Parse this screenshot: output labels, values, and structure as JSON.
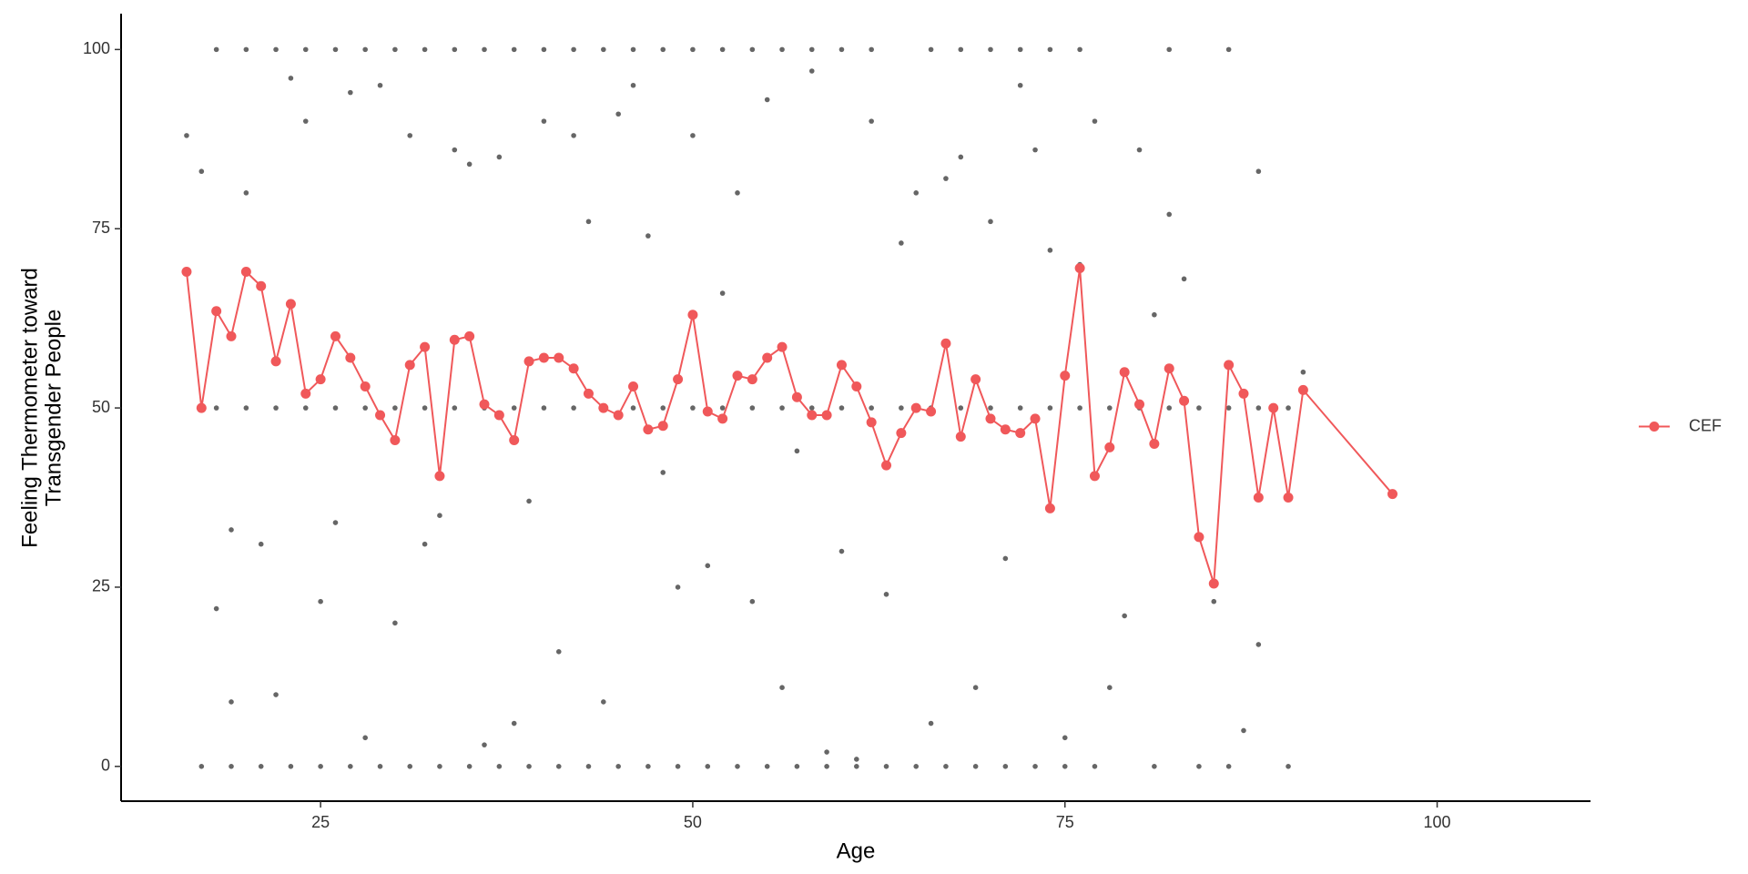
{
  "chart_data": {
    "type": "scatter",
    "xlabel": "Age",
    "ylabel": [
      "Feeling Thermometer toward",
      "Transgender People"
    ],
    "xlim": [
      11.6,
      110.3
    ],
    "ylim": [
      -4.85,
      105
    ],
    "xticks": [
      25,
      50,
      75,
      100
    ],
    "yticks": [
      0,
      25,
      50,
      75,
      100
    ],
    "grid": false,
    "legend": "right",
    "series": [
      {
        "color": "#000000",
        "mode": "markers",
        "x": [
          18,
          20,
          22,
          24,
          26,
          28,
          30,
          32,
          34,
          36,
          38,
          40,
          42,
          44,
          46,
          48,
          50,
          52,
          54,
          56,
          58,
          60,
          62,
          66,
          68,
          70,
          72,
          74,
          76,
          82,
          86,
          18,
          20,
          22,
          24,
          26,
          28,
          30,
          32,
          34,
          36,
          38,
          40,
          42,
          44,
          46,
          48,
          50,
          52,
          54,
          56,
          58,
          60,
          62,
          64,
          66,
          68,
          70,
          72,
          74,
          76,
          78,
          80,
          82,
          84,
          86,
          88,
          90,
          17,
          19,
          21,
          23,
          25,
          27,
          29,
          31,
          33,
          35,
          37,
          39,
          41,
          43,
          45,
          47,
          49,
          51,
          53,
          55,
          57,
          59,
          61,
          63,
          65,
          67,
          69,
          71,
          73,
          75,
          77,
          81,
          84,
          86,
          90,
          16,
          17,
          18,
          19,
          19,
          20,
          21,
          22,
          23,
          24,
          25,
          26,
          27,
          28,
          29,
          30,
          31,
          32,
          33,
          34,
          35,
          36,
          37,
          38,
          39,
          40,
          41,
          42,
          43,
          44,
          45,
          46,
          47,
          48,
          49,
          50,
          51,
          52,
          53,
          54,
          55,
          56,
          57,
          58,
          59,
          60,
          61,
          62,
          63,
          64,
          65,
          66,
          67,
          68,
          69,
          70,
          71,
          72,
          73,
          74,
          75,
          76,
          77,
          78,
          79,
          80,
          81,
          82,
          83,
          85,
          87,
          88,
          88,
          91
        ],
        "values": [
          100,
          100,
          100,
          100,
          100,
          100,
          100,
          100,
          100,
          100,
          100,
          100,
          100,
          100,
          100,
          100,
          100,
          100,
          100,
          100,
          100,
          100,
          100,
          100,
          100,
          100,
          100,
          100,
          100,
          100,
          100,
          50,
          50,
          50,
          50,
          50,
          50,
          50,
          50,
          50,
          50,
          50,
          50,
          50,
          50,
          50,
          50,
          50,
          50,
          50,
          50,
          50,
          50,
          50,
          50,
          50,
          50,
          50,
          50,
          50,
          50,
          50,
          50,
          50,
          50,
          50,
          50,
          50,
          0,
          0,
          0,
          0,
          0,
          0,
          0,
          0,
          0,
          0,
          0,
          0,
          0,
          0,
          0,
          0,
          0,
          0,
          0,
          0,
          0,
          0,
          0,
          0,
          0,
          0,
          0,
          0,
          0,
          0,
          0,
          0,
          0,
          0,
          0,
          88,
          83,
          22,
          9,
          33,
          80,
          31,
          10,
          96,
          90,
          23,
          34,
          94,
          4,
          95,
          20,
          88,
          31,
          35,
          86,
          84,
          3,
          85,
          6,
          37,
          90,
          16,
          88,
          76,
          9,
          91,
          95,
          74,
          41,
          25,
          88,
          28,
          66,
          80,
          23,
          93,
          11,
          44,
          97,
          2,
          30,
          1,
          90,
          24,
          73,
          80,
          6,
          82,
          85,
          11,
          76,
          29,
          95,
          86,
          72,
          4,
          70,
          90,
          11,
          21,
          86,
          63,
          77,
          68,
          23,
          5,
          17,
          83,
          55
        ]
      },
      {
        "name": "CEF",
        "color": "#f0585a",
        "mode": "lines+markers",
        "x": [
          16,
          17,
          18,
          19,
          20,
          21,
          22,
          23,
          24,
          25,
          26,
          27,
          28,
          29,
          30,
          31,
          32,
          33,
          34,
          35,
          36,
          37,
          38,
          39,
          40,
          41,
          42,
          43,
          44,
          45,
          46,
          47,
          48,
          49,
          50,
          51,
          52,
          53,
          54,
          55,
          56,
          57,
          58,
          59,
          60,
          61,
          62,
          63,
          64,
          65,
          66,
          67,
          68,
          69,
          70,
          71,
          72,
          73,
          74,
          75,
          76,
          77,
          78,
          79,
          80,
          81,
          82,
          83,
          84,
          85,
          86,
          87,
          88,
          89,
          90,
          91,
          97
        ],
        "values": [
          69,
          50,
          63.5,
          60,
          69,
          67,
          56.5,
          64.5,
          52,
          54,
          60,
          57,
          53,
          49,
          45.5,
          56,
          58.5,
          40.5,
          59.5,
          60,
          50.5,
          49,
          45.5,
          56.5,
          57,
          57,
          55.5,
          52,
          50,
          49,
          53,
          47,
          47.5,
          54,
          63,
          49.5,
          48.5,
          54.5,
          54,
          57,
          58.5,
          51.5,
          49,
          49,
          56,
          53,
          48,
          42,
          46.5,
          50,
          49.5,
          59,
          46,
          54,
          48.5,
          47,
          46.5,
          48.5,
          36,
          54.5,
          69.5,
          40.5,
          44.5,
          55,
          50.5,
          45,
          55.5,
          51,
          32,
          25.5,
          56,
          52,
          37.5,
          50,
          37.5,
          52.5,
          38
        ]
      }
    ]
  }
}
